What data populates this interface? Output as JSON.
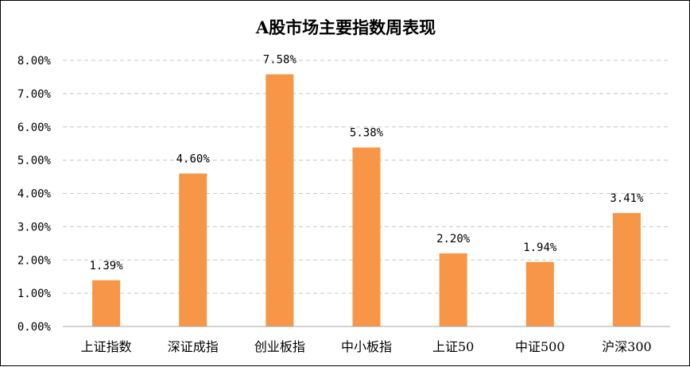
{
  "chart_data": {
    "type": "bar",
    "title": "A股市场主要指数周表现",
    "categories": [
      "上证指数",
      "深证成指",
      "创业板指",
      "中小板指",
      "上证50",
      "中证500",
      "沪深300"
    ],
    "values": [
      1.39,
      4.6,
      7.58,
      5.38,
      2.2,
      1.94,
      3.41
    ],
    "data_labels": [
      "1.39%",
      "4.60%",
      "7.58%",
      "5.38%",
      "2.20%",
      "1.94%",
      "3.41%"
    ],
    "y_ticks": [
      "0.00%",
      "1.00%",
      "2.00%",
      "3.00%",
      "4.00%",
      "5.00%",
      "6.00%",
      "7.00%",
      "8.00%"
    ],
    "ylim": [
      0,
      8
    ],
    "xlabel": "",
    "ylabel": "",
    "grid": true,
    "legend": "none",
    "bar_color": "#F79646"
  }
}
